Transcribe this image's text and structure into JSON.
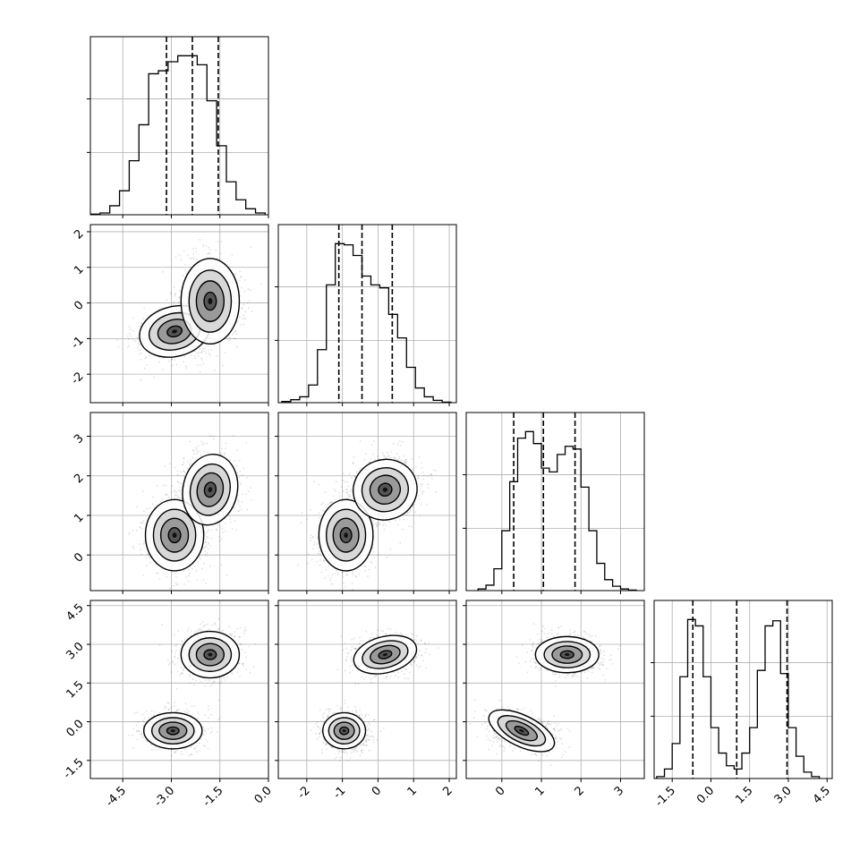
{
  "chart_data": {
    "type": "corner",
    "title": "",
    "grid": true,
    "parameters": [
      "",
      "",
      "",
      ""
    ],
    "ranges": [
      [
        -5.5,
        0.0
      ],
      [
        -2.8,
        2.2
      ],
      [
        -0.9,
        3.6
      ],
      [
        -2.2,
        4.7
      ]
    ],
    "ticks": [
      [
        "-4.5",
        "-3.0",
        "-1.5",
        "0.0"
      ],
      [
        "-2",
        "-1",
        "0",
        "1",
        "2"
      ],
      [
        "0",
        "1",
        "2",
        "3"
      ],
      [
        "-1.5",
        "0.0",
        "1.5",
        "3.0",
        "4.5"
      ]
    ],
    "quantiles": [
      [
        -3.15,
        -2.35,
        -1.55
      ],
      [
        -1.1,
        -0.45,
        0.4
      ],
      [
        0.3,
        1.05,
        1.85
      ],
      [
        -0.7,
        1.0,
        2.95
      ]
    ],
    "histograms": [
      {
        "bin_edges": [
          -5.5,
          -5.2,
          -4.9,
          -4.6,
          -4.3,
          -4.0,
          -3.7,
          -3.4,
          -3.1,
          -2.8,
          -2.5,
          -2.2,
          -1.9,
          -1.6,
          -1.3,
          -1.0,
          -0.7,
          -0.4,
          -0.1
        ],
        "counts": [
          1,
          3,
          15,
          40,
          90,
          150,
          235,
          240,
          255,
          265,
          265,
          250,
          190,
          115,
          55,
          25,
          10,
          3
        ]
      },
      {
        "bin_edges": [
          -2.7,
          -2.45,
          -2.2,
          -1.95,
          -1.7,
          -1.45,
          -1.2,
          -0.95,
          -0.7,
          -0.45,
          -0.2,
          0.05,
          0.3,
          0.55,
          0.8,
          1.05,
          1.3,
          1.55,
          1.8,
          2.05
        ],
        "counts": [
          2,
          5,
          10,
          30,
          90,
          200,
          270,
          268,
          250,
          215,
          200,
          195,
          150,
          110,
          60,
          25,
          10,
          4,
          1
        ]
      },
      {
        "bin_edges": [
          -0.6,
          -0.4,
          -0.2,
          0.0,
          0.2,
          0.4,
          0.6,
          0.8,
          1.0,
          1.2,
          1.4,
          1.6,
          1.8,
          2.0,
          2.2,
          2.4,
          2.6,
          2.8,
          3.0,
          3.2,
          3.4
        ],
        "counts": [
          3,
          10,
          40,
          110,
          200,
          280,
          292,
          270,
          225,
          218,
          250,
          265,
          260,
          190,
          110,
          50,
          20,
          8,
          3,
          1
        ]
      },
      {
        "bin_edges": [
          -2.1,
          -1.8,
          -1.5,
          -1.2,
          -0.9,
          -0.6,
          -0.3,
          0.0,
          0.3,
          0.6,
          0.9,
          1.2,
          1.5,
          1.8,
          2.1,
          2.4,
          2.7,
          3.0,
          3.3,
          3.6,
          3.9,
          4.2
        ],
        "counts": [
          3,
          15,
          55,
          160,
          250,
          240,
          160,
          80,
          40,
          20,
          15,
          40,
          80,
          170,
          240,
          248,
          165,
          80,
          35,
          10,
          3
        ]
      }
    ],
    "pair_modes": [
      {
        "x": 0,
        "y": 1,
        "modes": [
          {
            "cx": -2.9,
            "cy": -0.8,
            "sx": 0.55,
            "sy": 0.35,
            "rot": 0.25
          },
          {
            "cx": -1.8,
            "cy": 0.05,
            "sx": 0.45,
            "sy": 0.6,
            "rot": 0.0
          }
        ]
      },
      {
        "x": 0,
        "y": 2,
        "modes": [
          {
            "cx": -2.9,
            "cy": 0.5,
            "sx": 0.45,
            "sy": 0.45,
            "rot": 0.0
          },
          {
            "cx": -1.8,
            "cy": 1.65,
            "sx": 0.42,
            "sy": 0.45,
            "rot": -0.2
          }
        ]
      },
      {
        "x": 1,
        "y": 2,
        "modes": [
          {
            "cx": -0.9,
            "cy": 0.5,
            "sx": 0.38,
            "sy": 0.45,
            "rot": 0.0
          },
          {
            "cx": 0.2,
            "cy": 1.65,
            "sx": 0.45,
            "sy": 0.38,
            "rot": 0.3
          }
        ]
      },
      {
        "x": 0,
        "y": 3,
        "modes": [
          {
            "cx": -2.95,
            "cy": -0.35,
            "sx": 0.45,
            "sy": 0.35,
            "rot": 0.0
          },
          {
            "cx": -1.8,
            "cy": 2.6,
            "sx": 0.45,
            "sy": 0.45,
            "rot": 0.0
          }
        ]
      },
      {
        "x": 1,
        "y": 3,
        "modes": [
          {
            "cx": -0.95,
            "cy": -0.35,
            "sx": 0.3,
            "sy": 0.35,
            "rot": 0.0
          },
          {
            "cx": 0.2,
            "cy": 2.6,
            "sx": 0.45,
            "sy": 0.35,
            "rot": 0.25
          }
        ]
      },
      {
        "x": 2,
        "y": 3,
        "modes": [
          {
            "cx": 0.5,
            "cy": -0.35,
            "sx": 0.45,
            "sy": 0.3,
            "rot": -0.45
          },
          {
            "cx": 1.65,
            "cy": 2.6,
            "sx": 0.4,
            "sy": 0.35,
            "rot": 0.0
          }
        ]
      }
    ]
  }
}
